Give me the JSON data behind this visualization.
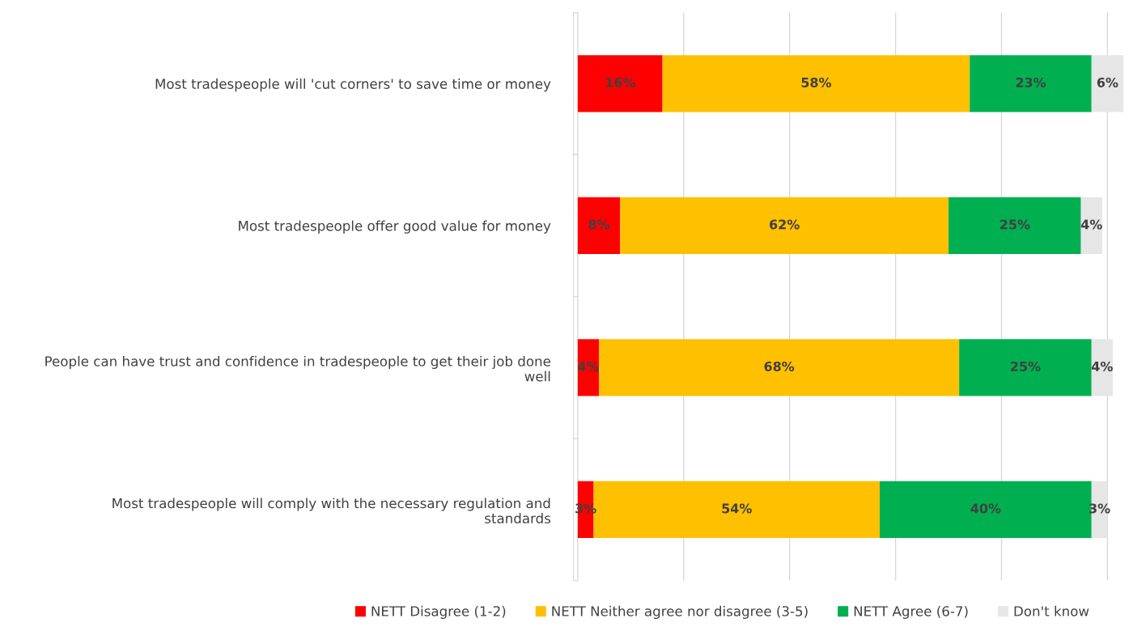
{
  "chart_data": {
    "type": "bar",
    "orientation": "horizontal",
    "stacked": true,
    "categories": [
      "Most tradespeople will 'cut corners' to save time or money",
      "Most tradespeople offer good value for money",
      "People can have trust and confidence in tradespeople to get their job done\nwell",
      "Most tradespeople will comply with the necessary regulation and\nstandards"
    ],
    "series": [
      {
        "name": "NETT Disagree (1-2)",
        "color": "#ff0000",
        "values": [
          16,
          8,
          4,
          3
        ],
        "value_labels": [
          "16%",
          "8%",
          "4%",
          "3%"
        ]
      },
      {
        "name": "NETT Neither agree nor disagree (3-5)",
        "color": "#ffc000",
        "values": [
          58,
          62,
          68,
          54
        ],
        "value_labels": [
          "58%",
          "62%",
          "68%",
          "54%"
        ]
      },
      {
        "name": "NETT Agree (6-7)",
        "color": "#00b050",
        "values": [
          23,
          25,
          25,
          40
        ],
        "value_labels": [
          "23%",
          "25%",
          "25%",
          "40%"
        ]
      },
      {
        "name": "Don't know",
        "color": "#e7e6e6",
        "values": [
          6,
          4,
          4,
          3
        ],
        "value_labels": [
          "6%",
          "4%",
          "4%",
          "3%"
        ]
      }
    ],
    "tick_labels": "y",
    "grid": "x",
    "legend": "bottom"
  }
}
